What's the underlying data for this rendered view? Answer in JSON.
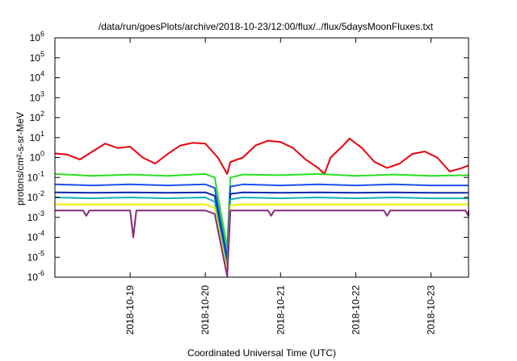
{
  "chart_data": {
    "type": "line",
    "title": "/data/run/goesPlots/archive/2018-10-23/12:00/flux/../flux/5daysMoonFluxes.txt",
    "xlabel": "Coordinated Universal Time (UTC)",
    "ylabel": "protons/cm²-s-sr-MeV",
    "xlim": [
      "2018-10-18 00:00",
      "2018-10-23 12:00"
    ],
    "ylim": [
      1e-06,
      1000000.0
    ],
    "yscale": "log",
    "x_ticks": [
      "2018-10-19",
      "2018-10-20",
      "2018-10-21",
      "2018-10-22",
      "2018-10-23"
    ],
    "y_ticks": [
      {
        "value": 1e-06,
        "base": "10",
        "exp": "-6"
      },
      {
        "value": 1e-05,
        "base": "10",
        "exp": "-5"
      },
      {
        "value": 0.0001,
        "base": "10",
        "exp": "-4"
      },
      {
        "value": 0.001,
        "base": "10",
        "exp": "-3"
      },
      {
        "value": 0.01,
        "base": "10",
        "exp": "-2"
      },
      {
        "value": 0.1,
        "base": "10",
        "exp": "-1"
      },
      {
        "value": 1,
        "base": "10",
        "exp": "0"
      },
      {
        "value": 10.0,
        "base": "10",
        "exp": "1"
      },
      {
        "value": 100.0,
        "base": "10",
        "exp": "2"
      },
      {
        "value": 1000.0,
        "base": "10",
        "exp": "3"
      },
      {
        "value": 10000.0,
        "base": "10",
        "exp": "4"
      },
      {
        "value": 100000.0,
        "base": "10",
        "exp": "5"
      },
      {
        "value": 1000000.0,
        "base": "10",
        "exp": "6"
      }
    ],
    "grid": false,
    "legend": "none",
    "series": [
      {
        "color": "#e8000b",
        "points": [
          [
            "2018-10-18 00:00",
            1.6
          ],
          [
            "2018-10-18 04:00",
            1.4
          ],
          [
            "2018-10-18 08:00",
            0.8
          ],
          [
            "2018-10-18 12:00",
            2.0
          ],
          [
            "2018-10-18 16:00",
            5.0
          ],
          [
            "2018-10-18 20:00",
            3.0
          ],
          [
            "2018-10-19 00:00",
            3.5
          ],
          [
            "2018-10-19 04:00",
            1.0
          ],
          [
            "2018-10-19 08:00",
            0.5
          ],
          [
            "2018-10-19 12:00",
            1.5
          ],
          [
            "2018-10-19 16:00",
            4.0
          ],
          [
            "2018-10-19 20:00",
            5.5
          ],
          [
            "2018-10-20 00:00",
            5.0
          ],
          [
            "2018-10-20 04:00",
            1.0
          ],
          [
            "2018-10-20 07:00",
            0.15
          ],
          [
            "2018-10-20 08:00",
            0.6
          ],
          [
            "2018-10-20 12:00",
            1.0
          ],
          [
            "2018-10-20 16:00",
            4.0
          ],
          [
            "2018-10-20 20:00",
            7.0
          ],
          [
            "2018-10-21 00:00",
            6.0
          ],
          [
            "2018-10-21 04:00",
            3.0
          ],
          [
            "2018-10-21 08:00",
            0.8
          ],
          [
            "2018-10-21 12:00",
            0.3
          ],
          [
            "2018-10-21 14:00",
            0.15
          ],
          [
            "2018-10-21 16:00",
            1.0
          ],
          [
            "2018-10-21 20:00",
            4.0
          ],
          [
            "2018-10-21 22:00",
            9.0
          ],
          [
            "2018-10-22 02:00",
            3.0
          ],
          [
            "2018-10-22 06:00",
            0.6
          ],
          [
            "2018-10-22 10:00",
            0.3
          ],
          [
            "2018-10-22 14:00",
            0.5
          ],
          [
            "2018-10-22 18:00",
            1.5
          ],
          [
            "2018-10-22 22:00",
            2.0
          ],
          [
            "2018-10-23 02:00",
            1.0
          ],
          [
            "2018-10-23 06:00",
            0.2
          ],
          [
            "2018-10-23 10:00",
            0.3
          ],
          [
            "2018-10-23 12:00",
            0.4
          ]
        ]
      },
      {
        "color": "#28e020",
        "points": [
          [
            "2018-10-18 00:00",
            0.15
          ],
          [
            "2018-10-18 12:00",
            0.12
          ],
          [
            "2018-10-19 00:00",
            0.14
          ],
          [
            "2018-10-19 12:00",
            0.12
          ],
          [
            "2018-10-20 00:00",
            0.15
          ],
          [
            "2018-10-20 03:00",
            0.1
          ],
          [
            "2018-10-20 07:00",
            3e-05
          ],
          [
            "2018-10-20 08:00",
            0.1
          ],
          [
            "2018-10-20 12:00",
            0.14
          ],
          [
            "2018-10-21 00:00",
            0.13
          ],
          [
            "2018-10-21 12:00",
            0.15
          ],
          [
            "2018-10-22 00:00",
            0.12
          ],
          [
            "2018-10-22 12:00",
            0.14
          ],
          [
            "2018-10-23 00:00",
            0.12
          ],
          [
            "2018-10-23 12:00",
            0.13
          ]
        ]
      },
      {
        "color": "#1a50f0",
        "points": [
          [
            "2018-10-18 00:00",
            0.045
          ],
          [
            "2018-10-18 12:00",
            0.04
          ],
          [
            "2018-10-19 00:00",
            0.045
          ],
          [
            "2018-10-19 12:00",
            0.04
          ],
          [
            "2018-10-20 00:00",
            0.045
          ],
          [
            "2018-10-20 03:00",
            0.03
          ],
          [
            "2018-10-20 07:00",
            1e-05
          ],
          [
            "2018-10-20 08:00",
            0.035
          ],
          [
            "2018-10-20 12:00",
            0.045
          ],
          [
            "2018-10-21 00:00",
            0.04
          ],
          [
            "2018-10-21 12:00",
            0.045
          ],
          [
            "2018-10-22 00:00",
            0.04
          ],
          [
            "2018-10-22 12:00",
            0.045
          ],
          [
            "2018-10-23 00:00",
            0.04
          ],
          [
            "2018-10-23 12:00",
            0.04
          ]
        ]
      },
      {
        "color": "#0a2aa8",
        "points": [
          [
            "2018-10-18 00:00",
            0.018
          ],
          [
            "2018-10-18 12:00",
            0.017
          ],
          [
            "2018-10-19 00:00",
            0.018
          ],
          [
            "2018-10-19 12:00",
            0.017
          ],
          [
            "2018-10-20 00:00",
            0.018
          ],
          [
            "2018-10-20 03:00",
            0.012
          ],
          [
            "2018-10-20 07:00",
            5e-06
          ],
          [
            "2018-10-20 08:00",
            0.015
          ],
          [
            "2018-10-20 12:00",
            0.018
          ],
          [
            "2018-10-21 00:00",
            0.017
          ],
          [
            "2018-10-21 12:00",
            0.018
          ],
          [
            "2018-10-22 00:00",
            0.017
          ],
          [
            "2018-10-22 12:00",
            0.018
          ],
          [
            "2018-10-23 00:00",
            0.017
          ],
          [
            "2018-10-23 12:00",
            0.017
          ]
        ]
      },
      {
        "color": "#18b0b0",
        "points": [
          [
            "2018-10-18 00:00",
            0.01
          ],
          [
            "2018-10-18 12:00",
            0.009
          ],
          [
            "2018-10-19 00:00",
            0.01
          ],
          [
            "2018-10-19 12:00",
            0.009
          ],
          [
            "2018-10-20 00:00",
            0.01
          ],
          [
            "2018-10-20 03:00",
            0.006
          ],
          [
            "2018-10-20 07:00",
            3e-06
          ],
          [
            "2018-10-20 08:00",
            0.008
          ],
          [
            "2018-10-20 12:00",
            0.01
          ],
          [
            "2018-10-21 00:00",
            0.009
          ],
          [
            "2018-10-21 12:00",
            0.01
          ],
          [
            "2018-10-22 00:00",
            0.009
          ],
          [
            "2018-10-22 12:00",
            0.01
          ],
          [
            "2018-10-23 00:00",
            0.009
          ],
          [
            "2018-10-23 12:00",
            0.009
          ]
        ]
      },
      {
        "color": "#f0f000",
        "points": [
          [
            "2018-10-18 00:00",
            0.0045
          ],
          [
            "2018-10-18 12:00",
            0.0045
          ],
          [
            "2018-10-19 00:00",
            0.0045
          ],
          [
            "2018-10-19 12:00",
            0.0045
          ],
          [
            "2018-10-20 00:00",
            0.0045
          ],
          [
            "2018-10-20 03:00",
            0.003
          ],
          [
            "2018-10-20 07:00",
            1.7e-06
          ],
          [
            "2018-10-20 08:00",
            0.004
          ],
          [
            "2018-10-20 12:00",
            0.0045
          ],
          [
            "2018-10-21 00:00",
            0.0045
          ],
          [
            "2018-10-21 12:00",
            0.0045
          ],
          [
            "2018-10-22 00:00",
            0.0045
          ],
          [
            "2018-10-22 12:00",
            0.0045
          ],
          [
            "2018-10-23 00:00",
            0.0045
          ],
          [
            "2018-10-23 12:00",
            0.0045
          ]
        ]
      },
      {
        "color": "#8a2a7a",
        "points": [
          [
            "2018-10-18 00:00",
            0.0022
          ],
          [
            "2018-10-18 09:00",
            0.0022
          ],
          [
            "2018-10-18 10:00",
            0.0012
          ],
          [
            "2018-10-18 11:00",
            0.0022
          ],
          [
            "2018-10-19 00:00",
            0.0022
          ],
          [
            "2018-10-19 01:00",
            0.0001
          ],
          [
            "2018-10-19 02:00",
            0.0022
          ],
          [
            "2018-10-20 00:00",
            0.0022
          ],
          [
            "2018-10-20 03:00",
            0.0015
          ],
          [
            "2018-10-20 07:00",
            1.1e-06
          ],
          [
            "2018-10-20 08:00",
            0.0022
          ],
          [
            "2018-10-20 20:00",
            0.0022
          ],
          [
            "2018-10-20 21:00",
            0.0012
          ],
          [
            "2018-10-20 22:00",
            0.0022
          ],
          [
            "2018-10-22 09:00",
            0.0022
          ],
          [
            "2018-10-22 10:00",
            0.0012
          ],
          [
            "2018-10-22 11:00",
            0.0022
          ],
          [
            "2018-10-23 11:00",
            0.0022
          ],
          [
            "2018-10-23 12:00",
            0.0012
          ],
          [
            "2018-10-23 12:00",
            0.0022
          ]
        ]
      }
    ]
  }
}
